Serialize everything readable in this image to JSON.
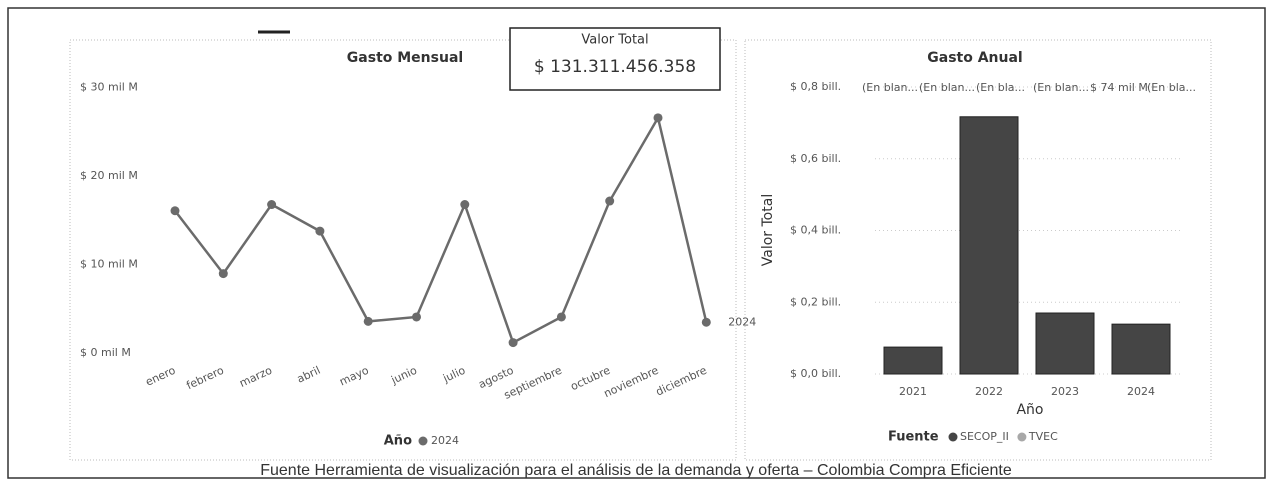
{
  "card": {
    "title": "Valor Total",
    "value": "$ 131.311.456.358"
  },
  "caption": "Fuente Herramienta de visualización para el análisis de la demanda y oferta – Colombia Compra Eficiente",
  "chart_data": [
    {
      "type": "line",
      "title": "Gasto Mensual",
      "categories": [
        "enero",
        "febrero",
        "marzo",
        "abril",
        "mayo",
        "junio",
        "julio",
        "agosto",
        "septiembre",
        "octubre",
        "noviembre",
        "diciembre"
      ],
      "series": [
        {
          "name": "2024",
          "color": "#6b6b6b",
          "values": [
            16.3,
            9.2,
            17.0,
            14.0,
            3.8,
            4.3,
            17.0,
            1.4,
            4.3,
            17.4,
            26.8,
            3.7
          ]
        }
      ],
      "legend_title": "Año",
      "ylim": [
        0,
        30
      ],
      "yticks": [
        {
          "value": 0,
          "label": "$ 0 mil M"
        },
        {
          "value": 10,
          "label": "$ 10 mil M"
        },
        {
          "value": 20,
          "label": "$ 20 mil M"
        },
        {
          "value": 30,
          "label": "$ 30 mil M"
        }
      ]
    },
    {
      "type": "bar",
      "title": "Gasto Anual",
      "ylabel": "Valor Total",
      "xlabel": "Año",
      "categories": [
        "2021",
        "2022",
        "2023",
        "2024"
      ],
      "series": [
        {
          "name": "SECOP_II",
          "color": "#454545",
          "values": [
            0.075,
            0.717,
            0.17,
            0.139
          ]
        },
        {
          "name": "TVEC",
          "color": "#a8a8a8",
          "values": [
            null,
            null,
            null,
            null
          ]
        }
      ],
      "legend_title": "Fuente",
      "annotations": [
        "(En blan...",
        "(En blan...",
        "(En bla...",
        "(En blan...",
        "$ 74 mil M",
        "(En bla..."
      ],
      "grid": true,
      "ylim": [
        0,
        0.8
      ],
      "yticks": [
        {
          "value": 0,
          "label": "$ 0,0 bill."
        },
        {
          "value": 0.2,
          "label": "$ 0,2 bill."
        },
        {
          "value": 0.4,
          "label": "$ 0,4 bill."
        },
        {
          "value": 0.6,
          "label": "$ 0,6 bill."
        },
        {
          "value": 0.8,
          "label": "$ 0,8 bill."
        }
      ]
    }
  ]
}
